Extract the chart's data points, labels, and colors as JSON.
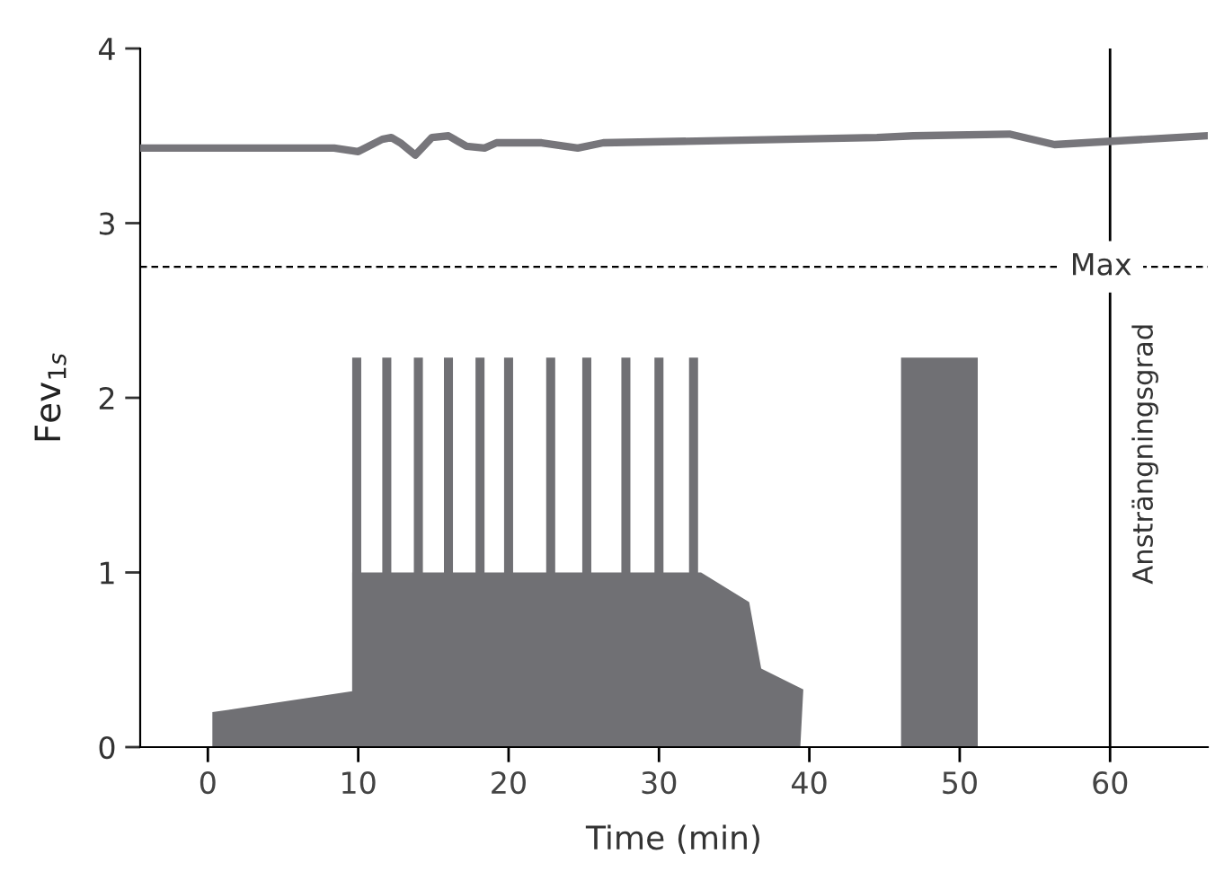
{
  "chart_data": {
    "type": "line",
    "xlabel": "Time (min)",
    "ylabel": "Fev$_{1s}$",
    "xlim": [
      -4.5,
      66.5
    ],
    "ylim": [
      0,
      4
    ],
    "xticks": [
      0,
      10,
      20,
      30,
      40,
      50,
      60
    ],
    "yticks": [
      0,
      1,
      2,
      3,
      4
    ],
    "grid": false,
    "legend": false,
    "series": [
      {
        "type": "bar",
        "color": "#707074",
        "x": [
          9.9,
          11.9,
          14.0,
          16.0,
          18.1,
          20.0,
          22.8,
          25.2,
          27.8,
          30.0,
          32.3
        ],
        "values": [
          2.23,
          2.23,
          2.23,
          2.23,
          2.23,
          2.23,
          2.23,
          2.23,
          2.23,
          2.23,
          2.23
        ]
      },
      {
        "type": "area",
        "color": "#707074",
        "x": [
          0.3,
          0.3,
          9.6,
          9.6,
          32.8,
          36.0,
          36.8,
          39.6,
          39.4
        ],
        "values": [
          0,
          0.2,
          0.32,
          1,
          1,
          0.83,
          0.45,
          0.33,
          0
        ]
      },
      {
        "type": "area",
        "color": "#707074",
        "x": [
          46.1,
          46.1,
          51.2,
          51.2
        ],
        "values": [
          0,
          2.23,
          2.23,
          0
        ]
      },
      {
        "color": "#77767b",
        "x": [
          -4.5,
          8.4,
          10.0,
          11.6,
          12.2,
          12.8,
          13.8,
          14.9,
          16.0,
          17.2,
          18.4,
          19.2,
          22.2,
          24.6,
          26.3,
          44.5,
          46.9,
          53.3,
          56.3,
          66.3
        ],
        "values": [
          3.43,
          3.43,
          3.41,
          3.48,
          3.49,
          3.46,
          3.39,
          3.49,
          3.5,
          3.44,
          3.43,
          3.46,
          3.46,
          3.43,
          3.46,
          3.49,
          3.5,
          3.51,
          3.45,
          3.5
        ]
      }
    ],
    "ref_lines": [
      {
        "axis": "y",
        "value": 2.75,
        "label": "Max",
        "color": "#000000",
        "line_style": "dashed"
      },
      {
        "axis": "x",
        "value": 60,
        "label": "Ansträngningsgrad",
        "color": "#000000",
        "line_style": "solid"
      }
    ]
  }
}
